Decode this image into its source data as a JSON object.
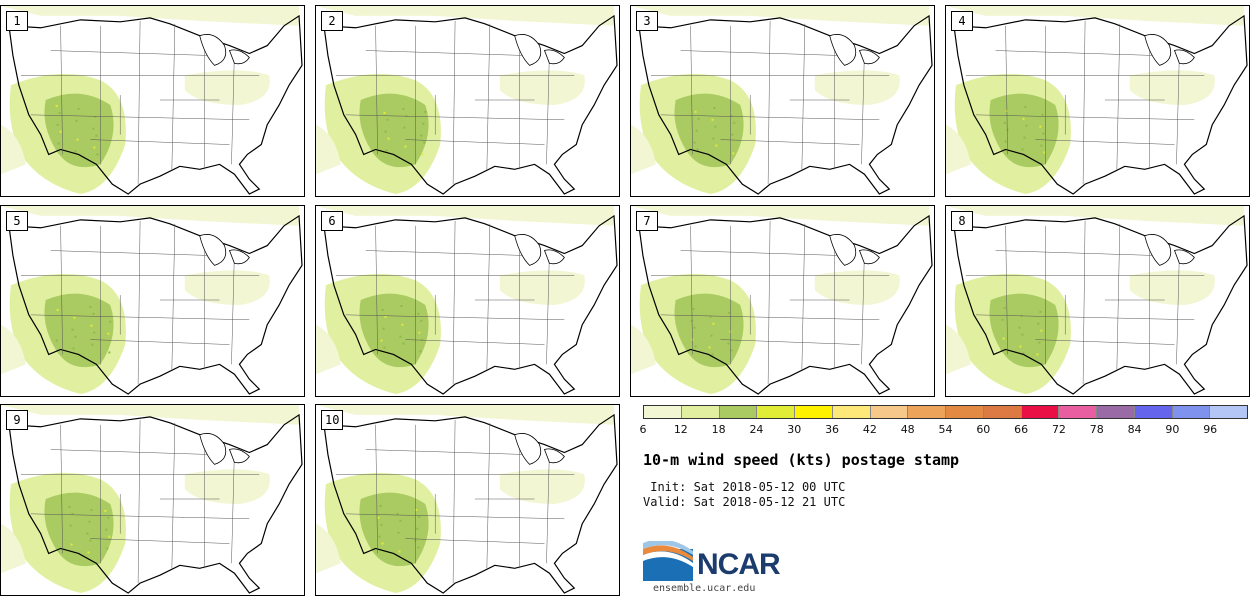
{
  "panels": [
    {
      "label": "1"
    },
    {
      "label": "2"
    },
    {
      "label": "3"
    },
    {
      "label": "4"
    },
    {
      "label": "5"
    },
    {
      "label": "6"
    },
    {
      "label": "7"
    },
    {
      "label": "8"
    },
    {
      "label": "9"
    },
    {
      "label": "10"
    }
  ],
  "colorbar": {
    "colors": [
      "#f2f6d2",
      "#e0f0a0",
      "#aacb62",
      "#e0ec36",
      "#fff200",
      "#ffe87a",
      "#f6c98a",
      "#eda35a",
      "#e28a44",
      "#dd7a44",
      "#ea0f44",
      "#e85ea0",
      "#9a6aa6",
      "#6464ec",
      "#7e92ee",
      "#b4c6f6"
    ],
    "ticks": [
      "6",
      "12",
      "18",
      "24",
      "30",
      "36",
      "42",
      "48",
      "54",
      "60",
      "66",
      "72",
      "78",
      "84",
      "90",
      "96"
    ]
  },
  "title": "10-m wind speed (kts) postage stamp",
  "init": " Init: Sat 2018-05-12 00 UTC",
  "valid": "Valid: Sat 2018-05-12 21 UTC",
  "logo": {
    "text": "NCAR",
    "site": "ensemble.ucar.edu"
  }
}
